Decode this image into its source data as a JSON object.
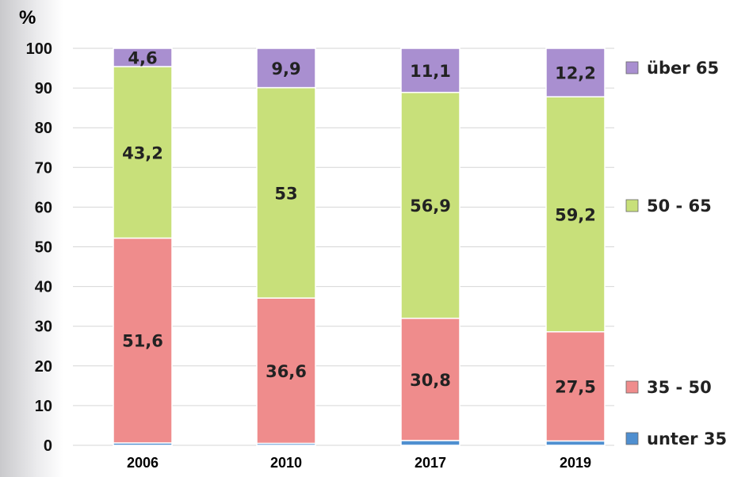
{
  "chart_data": {
    "type": "bar",
    "stacked": true,
    "unit_label": "%",
    "categories": [
      "2006",
      "2010",
      "2017",
      "2019"
    ],
    "series": [
      {
        "name": "unter 35",
        "values": [
          0.6,
          0.5,
          1.2,
          1.1
        ],
        "color": "#4f8fd0",
        "show_labels": false
      },
      {
        "name": "35 - 50",
        "values": [
          51.6,
          36.6,
          30.8,
          27.5
        ],
        "color": "#ef8c8c",
        "show_labels": true
      },
      {
        "name": "50 - 65",
        "values": [
          43.2,
          53,
          56.9,
          59.2
        ],
        "color": "#c8e07a",
        "show_labels": true
      },
      {
        "name": "über 65",
        "values": [
          4.6,
          9.9,
          11.1,
          12.2
        ],
        "color": "#a98fd0",
        "show_labels": true
      }
    ],
    "data_labels": [
      [
        "",
        "",
        "",
        ""
      ],
      [
        "51,6",
        "36,6",
        "30,8",
        "27,5"
      ],
      [
        "43,2",
        "53",
        "56,9",
        "59,2"
      ],
      [
        "4,6",
        "9,9",
        "11,1",
        "12,2"
      ]
    ],
    "ylim": [
      0,
      100
    ],
    "yticks": [
      0,
      10,
      20,
      30,
      40,
      50,
      60,
      70,
      80,
      90,
      100
    ],
    "grid": true,
    "legend_placement": "right"
  }
}
